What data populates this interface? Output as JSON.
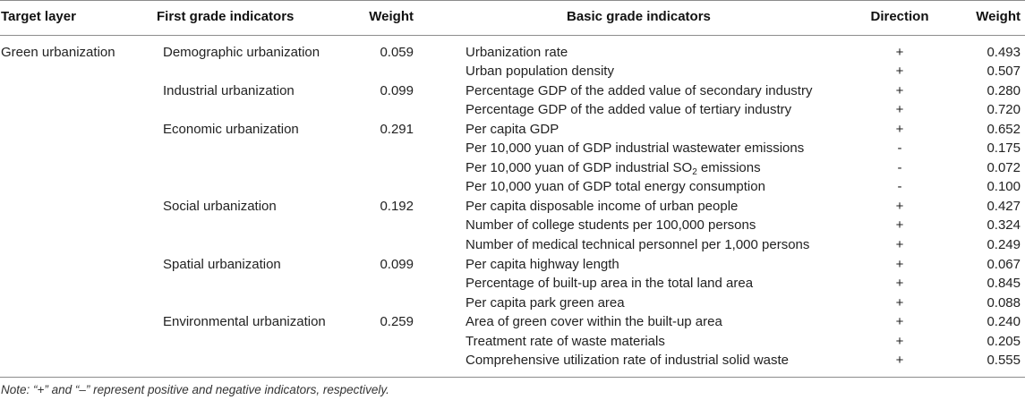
{
  "headers": {
    "target_layer": "Target layer",
    "first_grade": "First grade indicators",
    "weight1": "Weight",
    "basic_grade": "Basic grade indicators",
    "direction": "Direction",
    "weight2": "Weight"
  },
  "target": "Green urbanization",
  "groups": [
    {
      "name": "Demographic urbanization",
      "weight": "0.059"
    },
    {
      "name": "Industrial urbanization",
      "weight": "0.099"
    },
    {
      "name": "Economic urbanization",
      "weight": "0.291"
    },
    {
      "name": "Social urbanization",
      "weight": "0.192"
    },
    {
      "name": "Spatial urbanization",
      "weight": "0.099"
    },
    {
      "name": "Environmental urbanization",
      "weight": "0.259"
    }
  ],
  "rows": [
    {
      "indicator": "Urbanization rate",
      "direction": "+",
      "weight": "0.493"
    },
    {
      "indicator": "Urban population density",
      "direction": "+",
      "weight": "0.507"
    },
    {
      "indicator": "Percentage GDP of the added value of secondary industry",
      "direction": "+",
      "weight": "0.280"
    },
    {
      "indicator": "Percentage GDP of the added value of tertiary industry",
      "direction": "+",
      "weight": "0.720"
    },
    {
      "indicator": "Per capita GDP",
      "direction": "+",
      "weight": "0.652"
    },
    {
      "indicator": "Per 10,000 yuan of GDP industrial wastewater emissions",
      "direction": "-",
      "weight": "0.175"
    },
    {
      "indicator": "Per 10,000 yuan of GDP industrial SO",
      "indicator_sub": "2",
      "indicator_tail": " emissions",
      "direction": "-",
      "weight": "0.072"
    },
    {
      "indicator": "Per 10,000 yuan of GDP total energy consumption",
      "direction": "-",
      "weight": "0.100"
    },
    {
      "indicator": "Per capita disposable income of urban people",
      "direction": "+",
      "weight": "0.427"
    },
    {
      "indicator": "Number of college students per 100,000 persons",
      "direction": "+",
      "weight": "0.324"
    },
    {
      "indicator": "Number of medical technical personnel per 1,000 persons",
      "direction": "+",
      "weight": "0.249"
    },
    {
      "indicator": "Per capita highway length",
      "direction": "+",
      "weight": "0.067"
    },
    {
      "indicator": "Percentage of built-up area in the total land area",
      "direction": "+",
      "weight": "0.845"
    },
    {
      "indicator": "Per capita park green area",
      "direction": "+",
      "weight": "0.088"
    },
    {
      "indicator": "Area of green cover within the built-up area",
      "direction": "+",
      "weight": "0.240"
    },
    {
      "indicator": "Treatment rate of waste materials",
      "direction": "+",
      "weight": "0.205"
    },
    {
      "indicator": "Comprehensive utilization rate of industrial solid waste",
      "direction": "+",
      "weight": "0.555"
    }
  ],
  "note": "Note: “+” and “–” represent positive and negative indicators, respectively."
}
